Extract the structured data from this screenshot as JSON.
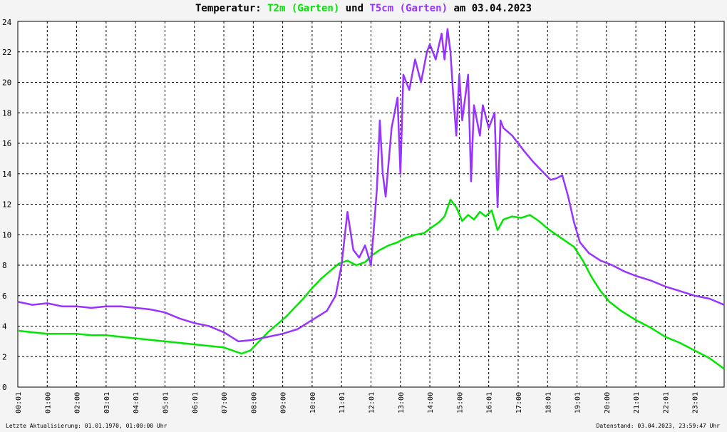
{
  "title": {
    "prefix": "Temperatur: ",
    "series1": "T2m (Garten)",
    "joiner": " und ",
    "series2": "T5cm (Garten)",
    "suffix": " am 03.04.2023"
  },
  "footer": {
    "left": "Letzte Aktualisierung: 01.01.1970, 01:00:00 Uhr",
    "right": "Datenstand: 03.04.2023, 23:59:47 Uhr"
  },
  "colors": {
    "t2m": "#00e600",
    "t5cm": "#9933ff",
    "grid": "#000000",
    "plot_bg": "#ffffff"
  },
  "chart_data": {
    "type": "line",
    "title": "Temperatur: T2m (Garten) und T5cm (Garten) am 03.04.2023",
    "xlabel": "",
    "ylabel": "",
    "xlim": [
      0,
      24
    ],
    "ylim": [
      0,
      24
    ],
    "y_ticks": [
      0,
      2,
      4,
      6,
      8,
      10,
      12,
      14,
      16,
      18,
      20,
      22,
      24
    ],
    "x_tick_labels": [
      "00:01",
      "01:00",
      "02:00",
      "03:01",
      "04:01",
      "05:01",
      "06:01",
      "07:00",
      "08:00",
      "09:00",
      "10:00",
      "11:01",
      "12:01",
      "13:00",
      "14:00",
      "15:00",
      "16:01",
      "17:00",
      "18:01",
      "19:01",
      "20:00",
      "21:01",
      "22:01",
      "23:01"
    ],
    "grid": true,
    "series": [
      {
        "name": "T2m (Garten)",
        "color": "#00e600",
        "x": [
          0,
          0.5,
          1,
          1.5,
          2,
          2.5,
          3,
          3.5,
          4,
          4.5,
          5,
          5.5,
          6,
          6.5,
          7,
          7.3,
          7.6,
          7.9,
          8.2,
          8.5,
          8.8,
          9.1,
          9.4,
          9.7,
          10,
          10.3,
          10.6,
          10.9,
          11.2,
          11.5,
          11.8,
          12,
          12.3,
          12.6,
          12.9,
          13.2,
          13.5,
          13.8,
          14,
          14.3,
          14.5,
          14.7,
          14.9,
          15.1,
          15.3,
          15.5,
          15.7,
          15.9,
          16.1,
          16.3,
          16.5,
          16.8,
          17.1,
          17.4,
          17.7,
          18,
          18.3,
          18.6,
          18.9,
          19.2,
          19.5,
          19.8,
          20.1,
          20.5,
          21,
          21.5,
          22,
          22.5,
          23,
          23.5,
          24
        ],
        "y": [
          3.7,
          3.6,
          3.5,
          3.5,
          3.5,
          3.4,
          3.4,
          3.3,
          3.2,
          3.1,
          3.0,
          2.9,
          2.8,
          2.7,
          2.6,
          2.4,
          2.2,
          2.4,
          3.0,
          3.6,
          4.1,
          4.6,
          5.2,
          5.8,
          6.5,
          7.1,
          7.6,
          8.1,
          8.3,
          8.0,
          8.2,
          8.6,
          9.0,
          9.3,
          9.5,
          9.8,
          10.0,
          10.1,
          10.4,
          10.8,
          11.2,
          12.3,
          11.8,
          10.9,
          11.3,
          11.0,
          11.5,
          11.2,
          11.6,
          10.3,
          11.0,
          11.2,
          11.1,
          11.3,
          10.9,
          10.4,
          10.0,
          9.6,
          9.2,
          8.3,
          7.2,
          6.3,
          5.6,
          5.0,
          4.4,
          3.9,
          3.3,
          2.9,
          2.4,
          1.9,
          1.2
        ]
      },
      {
        "name": "T5cm (Garten)",
        "color": "#9933ff",
        "x": [
          0,
          0.5,
          1,
          1.5,
          2,
          2.5,
          3,
          3.5,
          4,
          4.5,
          5,
          5.5,
          6,
          6.5,
          7,
          7.5,
          8,
          8.5,
          9,
          9.5,
          10,
          10.5,
          10.8,
          11,
          11.2,
          11.4,
          11.6,
          11.8,
          12,
          12.2,
          12.3,
          12.4,
          12.5,
          12.7,
          12.9,
          13,
          13.1,
          13.3,
          13.5,
          13.7,
          13.9,
          14,
          14.2,
          14.4,
          14.5,
          14.6,
          14.7,
          14.8,
          14.9,
          15,
          15.1,
          15.3,
          15.4,
          15.5,
          15.7,
          15.8,
          16,
          16.2,
          16.3,
          16.4,
          16.5,
          16.8,
          17.2,
          17.5,
          17.8,
          18.1,
          18.3,
          18.5,
          18.7,
          18.9,
          19.1,
          19.4,
          19.8,
          20.2,
          20.6,
          21,
          21.5,
          22,
          22.5,
          23,
          23.5,
          24
        ],
        "y": [
          5.6,
          5.4,
          5.5,
          5.3,
          5.3,
          5.2,
          5.3,
          5.3,
          5.2,
          5.1,
          4.9,
          4.5,
          4.2,
          4.0,
          3.6,
          3.0,
          3.1,
          3.3,
          3.5,
          3.8,
          4.4,
          5.0,
          6.0,
          8.0,
          11.5,
          9.0,
          8.5,
          9.3,
          8.0,
          13.0,
          17.5,
          14.0,
          12.5,
          17.0,
          19.0,
          14.0,
          20.5,
          19.5,
          21.5,
          20.0,
          22.0,
          22.5,
          21.5,
          23.2,
          21.5,
          23.5,
          22.0,
          19.0,
          16.5,
          20.5,
          17.5,
          20.5,
          13.5,
          18.5,
          16.5,
          18.5,
          17.0,
          18.0,
          11.8,
          17.5,
          17.0,
          16.5,
          15.5,
          14.8,
          14.2,
          13.6,
          13.7,
          13.9,
          12.5,
          10.8,
          9.5,
          8.8,
          8.3,
          8.0,
          7.6,
          7.3,
          7.0,
          6.6,
          6.3,
          6.0,
          5.8,
          5.4
        ]
      }
    ]
  }
}
